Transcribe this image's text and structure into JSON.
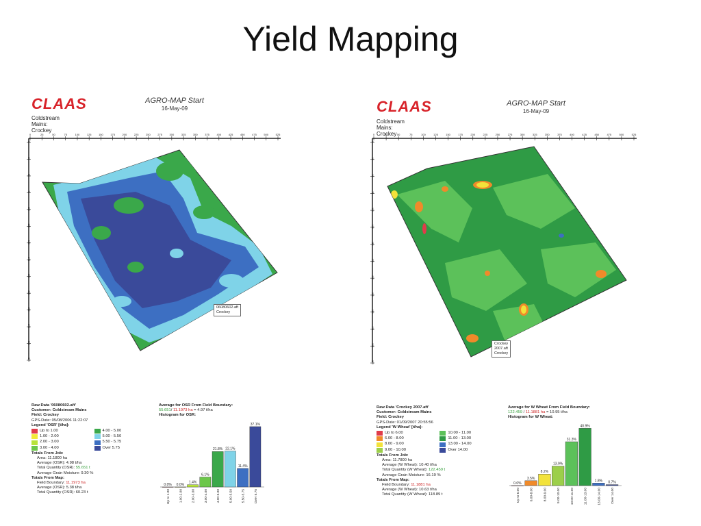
{
  "slide": {
    "title": "Yield Mapping"
  },
  "panels": [
    {
      "brand": "CLAAS",
      "app_title": "AGRO-MAP Start",
      "date": "16-May-09",
      "field_name": "Coldstream Mains: Crockey",
      "top_ruler": [
        "0",
        "25",
        "50",
        "75",
        "100",
        "125",
        "150",
        "175",
        "200",
        "225",
        "250",
        "275",
        "300",
        "325",
        "350",
        "375",
        "400",
        "425",
        "450",
        "475",
        "500",
        "525"
      ],
      "left_ruler": [
        "0",
        "25",
        "50",
        "75",
        "100",
        "125",
        "150",
        "175",
        "200",
        "225",
        "250",
        "275",
        "300",
        "325"
      ],
      "map_label": {
        "file": "06080602.aft",
        "field": "Crockey"
      },
      "raw_data": {
        "title": "Raw Data '06080602.aft'",
        "customer": "Customer: Coldstream Mains",
        "field": "Field: Crockey",
        "gps_date": "GPS-Date: 05/08/2006 11:22:07",
        "legend_title": "Legend 'OSR' [t/ha]:",
        "legend": [
          {
            "label": "Up to 1.00",
            "color": "#e03c4a"
          },
          {
            "label": "4.00 - 5.00",
            "color": "#3aa84a"
          },
          {
            "label": "1.00 - 2.00",
            "color": "#f2ea3a"
          },
          {
            "label": "5.00 - 5.50",
            "color": "#7fd3e8"
          },
          {
            "label": "2.00 - 3.00",
            "color": "#b8e33a"
          },
          {
            "label": "5.50 - 5.75",
            "color": "#3d6fc2"
          },
          {
            "label": "3.00 - 4.00",
            "color": "#6cc74a"
          },
          {
            "label": "Over 5.75",
            "color": "#3a4a9a"
          }
        ],
        "totals_job_title": "Totals From Job:",
        "area": "Area: 11.1800 ha",
        "avg": "Average (OSR): 4.98 t/ha",
        "total_qty_prefix": "Total Quantity (OSR): ",
        "total_qty_value": "55.651 t",
        "moisture": "Average Grain Moisture: 9.30 %",
        "totals_map_title": "Totals From Map:",
        "boundary_prefix": "Field Boundary: ",
        "boundary_value": "11.1973 ha",
        "map_avg": "Average (OSR): 5.38 t/ha",
        "map_total": "Total Quantity (OSR): 60.23 t"
      },
      "histogram": {
        "title": "Average for OSR From Field Boundary:",
        "line_a": "55.651",
        "line_b": "/ ",
        "line_c": "11.1973 ha",
        "line_d": " = 4.97 t/ha",
        "subtitle": "Histogram for OSR:"
      }
    },
    {
      "brand": "CLAAS",
      "app_title": "AGRO-MAP Start",
      "date": "16-May-09",
      "field_name": "Coldstream Mains: Crockey",
      "top_ruler": [
        "0",
        "25",
        "50",
        "75",
        "100",
        "125",
        "150",
        "175",
        "200",
        "225",
        "250",
        "275",
        "300",
        "325",
        "350",
        "375",
        "400",
        "425",
        "450",
        "475",
        "500",
        "525"
      ],
      "left_ruler": [
        "0",
        "25",
        "50",
        "75",
        "100",
        "125",
        "150",
        "175",
        "200",
        "225",
        "250",
        "275",
        "300",
        "325"
      ],
      "map_label": {
        "file": "Crockey 2007.aft",
        "field": "Crockey"
      },
      "raw_data": {
        "title": "Raw Data 'Crockey 2007.aft'",
        "customer": "Customer: Coldstream Mains",
        "field": "Field: Crockey",
        "gps_date": "GPS-Date: 01/09/2007 20:55:56",
        "legend_title": "Legend 'W Wheat' [t/ha]:",
        "legend": [
          {
            "label": "Up to 6.00",
            "color": "#e03c4a"
          },
          {
            "label": "10.00 - 11.00",
            "color": "#5cc15a"
          },
          {
            "label": "6.00 - 8.00",
            "color": "#f08a2a"
          },
          {
            "label": "11.00 - 13.00",
            "color": "#2f9b45"
          },
          {
            "label": "8.00 - 9.00",
            "color": "#f2e23a"
          },
          {
            "label": "13.00 - 14.00",
            "color": "#3d6fc2"
          },
          {
            "label": "9.00 - 10.00",
            "color": "#9ccf4a"
          },
          {
            "label": "Over 14.00",
            "color": "#3a4a9a"
          }
        ],
        "totals_job_title": "Totals From Job:",
        "area": "Area: 11.7800 ha",
        "avg": "Average (W Wheat): 10.40 t/ha",
        "total_qty_prefix": "Total Quantity (W Wheat): ",
        "total_qty_value": "122.459 t",
        "moisture": "Average Grain Moisture: 16.19 %",
        "totals_map_title": "Totals From Map:",
        "boundary_prefix": "Field Boundary: ",
        "boundary_value": "11.1881 ha",
        "map_avg": "Average (W Wheat): 10.63 t/ha",
        "map_total": "Total Quantity (W Wheat): 118.89 t"
      },
      "histogram": {
        "title": "Average for W Wheat From Field Boundary:",
        "line_a": "122.459",
        "line_b": " / ",
        "line_c": "11.1881 ha",
        "line_d": " = 10.95 t/ha",
        "subtitle": "Histogram for W Wheat:"
      }
    }
  ],
  "chart_data": [
    {
      "type": "bar",
      "categories": [
        "Up to 1.00",
        "1.00-2.00",
        "2.00-3.00",
        "3.00-4.00",
        "4.00-5.00",
        "5.00-5.50",
        "5.50-5.75",
        "Over 5.75"
      ],
      "values": [
        0.0,
        0.0,
        1.4,
        6.1,
        21.8,
        22.1,
        11.4,
        37.1
      ],
      "value_labels": [
        "0.0%",
        "0.0%",
        "1.4%",
        "6.1%",
        "21.8%",
        "22.1%",
        "11.4%",
        "37.1%"
      ],
      "colors": [
        "#e03c4a",
        "#f2ea3a",
        "#b8e33a",
        "#6cc74a",
        "#3aa84a",
        "#7fd3e8",
        "#3d6fc2",
        "#3a4a9a"
      ],
      "title": "Histogram for OSR:",
      "ylim": [
        0,
        40
      ]
    },
    {
      "type": "bar",
      "categories": [
        "Up to 6.00",
        "6.00-8.00",
        "8.00-9.00",
        "9.00-10.00",
        "10.00-11.00",
        "11.00-13.00",
        "13.00-14.00",
        "Over 14.00"
      ],
      "values": [
        0.0,
        3.5,
        8.2,
        13.9,
        31.3,
        40.9,
        1.8,
        0.7
      ],
      "value_labels": [
        "0.0%",
        "3.5%",
        "8.2%",
        "13.9%",
        "31.3%",
        "40.9%",
        "1.8%",
        "0.7%"
      ],
      "colors": [
        "#e03c4a",
        "#f08a2a",
        "#f2e23a",
        "#9ccf4a",
        "#5cc15a",
        "#2f9b45",
        "#3d6fc2",
        "#3a4a9a"
      ],
      "title": "Histogram for W Wheat:",
      "ylim": [
        0,
        44
      ]
    }
  ]
}
